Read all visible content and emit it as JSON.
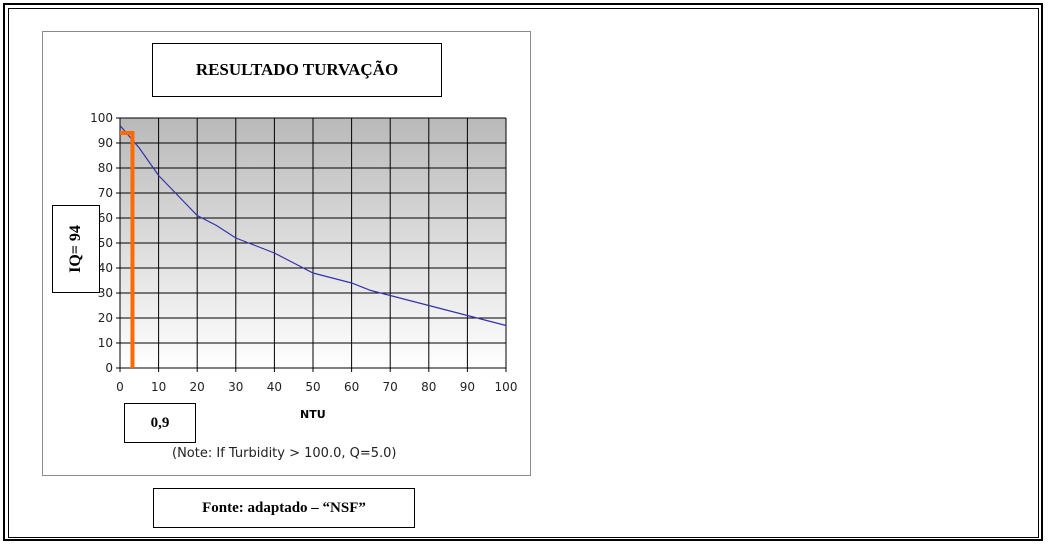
{
  "title": "RESULTADO TURVAÇÃO",
  "iq_label": "IQ= 94",
  "x_marker_label": "0,9",
  "note": "(Note:  If Turbidity > 100.0, Q=5.0)",
  "source": "Fonte: adaptado – “NSF”",
  "colors": {
    "curve": "#3333aa",
    "marker": "#ff6a00",
    "grid": "#000000"
  },
  "chart_data": {
    "type": "line",
    "title": "RESULTADO TURVAÇÃO",
    "xlabel": "NTU",
    "ylabel": "",
    "xlim": [
      0,
      100
    ],
    "ylim": [
      0,
      100
    ],
    "x_ticks": [
      "0",
      "10",
      "20",
      "30",
      "40",
      "50",
      "60",
      "70",
      "80",
      "90",
      "100"
    ],
    "y_ticks": [
      "0",
      "10",
      "20",
      "30",
      "40",
      "50",
      "60",
      "70",
      "80",
      "90",
      "100"
    ],
    "grid": true,
    "series": [
      {
        "x": [
          0,
          5,
          10,
          15,
          20,
          25,
          30,
          35,
          40,
          45,
          50,
          55,
          60,
          65,
          70,
          75,
          80,
          85,
          90,
          95,
          100
        ],
        "y": [
          97,
          88,
          77,
          69,
          61,
          57,
          52,
          49,
          46,
          42,
          38,
          36,
          34,
          31,
          29,
          27,
          25,
          23,
          21,
          19,
          17
        ]
      }
    ],
    "marker": {
      "x": 0.9,
      "y": 94
    }
  }
}
